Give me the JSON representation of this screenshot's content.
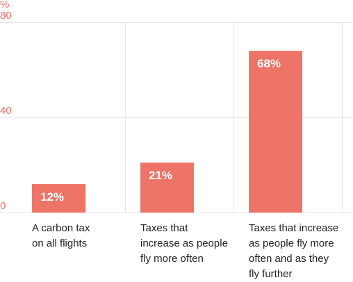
{
  "chart_data": {
    "type": "bar",
    "y_unit": "%",
    "categories": [
      [
        "A carbon tax",
        "on all flights"
      ],
      [
        "Taxes that",
        "increase as people",
        "fly more often"
      ],
      [
        "Taxes that increase",
        "as people fly more",
        "often and as they",
        "fly further"
      ]
    ],
    "values": [
      12,
      21,
      68
    ],
    "data_labels": [
      "12%",
      "21%",
      "68%"
    ],
    "y_ticks": [
      {
        "value": 0,
        "label": "0"
      },
      {
        "value": 40,
        "label": "40"
      },
      {
        "value": 80,
        "label": "80"
      }
    ],
    "ylim": [
      0,
      80
    ],
    "bar_color": "#ee7468",
    "tick_color": "#ee7468",
    "grid": true
  }
}
